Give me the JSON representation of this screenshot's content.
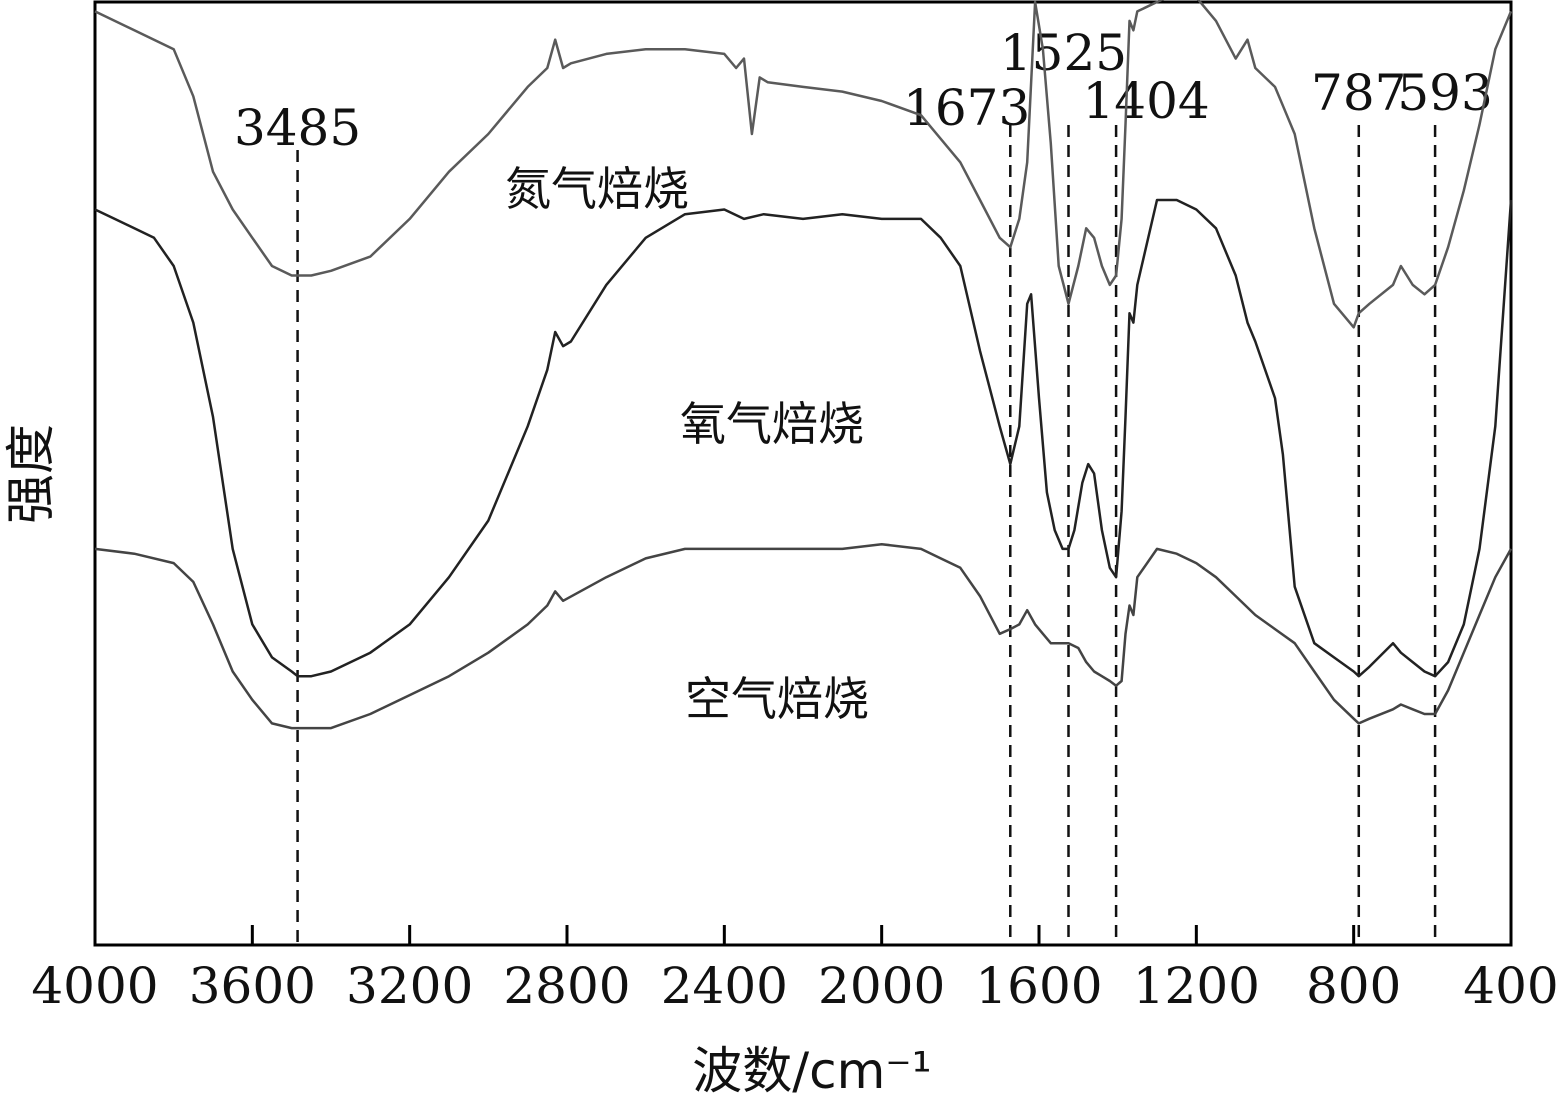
{
  "chart_data": {
    "type": "line",
    "xlabel": "波数/cm⁻¹",
    "ylabel": "强度",
    "xlim": [
      4000,
      400
    ],
    "x_reversed": true,
    "ylim": [
      0,
      100
    ],
    "grid": false,
    "xticks": [
      4000,
      3600,
      3200,
      2800,
      2400,
      2000,
      1600,
      1200,
      800,
      400
    ],
    "y_tick_labels_shown": false,
    "reference_lines": [
      {
        "x": 3485,
        "label": "3485"
      },
      {
        "x": 1673,
        "label": "1673"
      },
      {
        "x": 1525,
        "label": "1525"
      },
      {
        "x": 1404,
        "label": "1404"
      },
      {
        "x": 787,
        "label": "787"
      },
      {
        "x": 593,
        "label": "593"
      }
    ],
    "series": [
      {
        "name": "氮气焙烧",
        "color": "#5a5a5a",
        "x": [
          4000,
          3900,
          3800,
          3750,
          3700,
          3650,
          3600,
          3550,
          3500,
          3450,
          3400,
          3300,
          3200,
          3100,
          3000,
          2900,
          2850,
          2830,
          2810,
          2790,
          2700,
          2600,
          2500,
          2400,
          2370,
          2350,
          2330,
          2310,
          2290,
          2200,
          2100,
          2000,
          1900,
          1800,
          1750,
          1700,
          1673,
          1650,
          1630,
          1610,
          1590,
          1570,
          1550,
          1525,
          1500,
          1480,
          1460,
          1440,
          1420,
          1404,
          1390,
          1380,
          1370,
          1360,
          1350,
          1300,
          1250,
          1200,
          1150,
          1100,
          1070,
          1050,
          1000,
          980,
          950,
          900,
          850,
          800,
          787,
          760,
          700,
          680,
          650,
          620,
          593,
          560,
          520,
          480,
          440,
          400
        ],
        "y": [
          99,
          97,
          95,
          90,
          82,
          78,
          75,
          72,
          71,
          71,
          71.5,
          73,
          77,
          82,
          86,
          91,
          93,
          96,
          93,
          93.5,
          94.5,
          95,
          95,
          94.5,
          93,
          94,
          86,
          92,
          91.5,
          91,
          90.5,
          89.5,
          88,
          83,
          79,
          75,
          74,
          77,
          83,
          100,
          95,
          85,
          72,
          68,
          72,
          76,
          75,
          72,
          70,
          71,
          77,
          87,
          98,
          97,
          99,
          100,
          101,
          100.5,
          98,
          94,
          96,
          93,
          91,
          89,
          86,
          76,
          68,
          65.5,
          67,
          68,
          70,
          72,
          70,
          69,
          70,
          74,
          80,
          87,
          95,
          99
        ]
      },
      {
        "name": "氧气焙烧",
        "color": "#222222",
        "x": [
          4000,
          3950,
          3900,
          3850,
          3800,
          3750,
          3700,
          3650,
          3600,
          3550,
          3500,
          3485,
          3450,
          3400,
          3300,
          3200,
          3100,
          3000,
          2900,
          2850,
          2830,
          2810,
          2790,
          2700,
          2600,
          2500,
          2400,
          2350,
          2300,
          2200,
          2100,
          2000,
          1900,
          1850,
          1800,
          1750,
          1700,
          1673,
          1650,
          1630,
          1620,
          1600,
          1580,
          1560,
          1540,
          1525,
          1510,
          1490,
          1475,
          1460,
          1440,
          1420,
          1404,
          1390,
          1380,
          1370,
          1360,
          1350,
          1300,
          1250,
          1200,
          1150,
          1100,
          1070,
          1050,
          1000,
          980,
          950,
          900,
          850,
          800,
          787,
          760,
          700,
          680,
          650,
          620,
          593,
          560,
          520,
          480,
          440,
          400
        ],
        "y": [
          78,
          77,
          76,
          75,
          72,
          66,
          56,
          42,
          34,
          30.5,
          29,
          28.5,
          28.5,
          29,
          31,
          34,
          39,
          45,
          55,
          61,
          65,
          63.5,
          64,
          70,
          75,
          77.5,
          78,
          77,
          77.5,
          77,
          77.5,
          77,
          77,
          75,
          72,
          63,
          55,
          51,
          55,
          68,
          69,
          58,
          48,
          44,
          42,
          42,
          44,
          49,
          51,
          50,
          44,
          40,
          39,
          46,
          56,
          67,
          66,
          70,
          79,
          79,
          78,
          76,
          71,
          66,
          64,
          58,
          52,
          38,
          32,
          30.5,
          29,
          28.5,
          29.5,
          32,
          31,
          30,
          29,
          28.5,
          30,
          34,
          42,
          55,
          79
        ]
      },
      {
        "name": "空气焙烧",
        "color": "#444444",
        "x": [
          4000,
          3900,
          3800,
          3750,
          3700,
          3650,
          3600,
          3550,
          3500,
          3485,
          3450,
          3400,
          3300,
          3200,
          3100,
          3000,
          2900,
          2850,
          2830,
          2810,
          2700,
          2600,
          2500,
          2400,
          2300,
          2200,
          2100,
          2000,
          1900,
          1850,
          1800,
          1750,
          1700,
          1673,
          1650,
          1630,
          1610,
          1590,
          1570,
          1550,
          1525,
          1500,
          1480,
          1460,
          1440,
          1420,
          1404,
          1390,
          1380,
          1370,
          1360,
          1350,
          1300,
          1250,
          1200,
          1150,
          1100,
          1050,
          1000,
          950,
          900,
          850,
          800,
          787,
          760,
          700,
          680,
          650,
          620,
          593,
          560,
          520,
          480,
          440,
          400
        ],
        "y": [
          42,
          41.5,
          40.5,
          38.5,
          34,
          29,
          26,
          23.5,
          23,
          23,
          23,
          23,
          24.5,
          26.5,
          28.5,
          31,
          34,
          36,
          37.5,
          36.5,
          39,
          41,
          42,
          42,
          42,
          42,
          42,
          42.5,
          42,
          41,
          40,
          37,
          33,
          33.5,
          34,
          35.5,
          34,
          33,
          32,
          32,
          32,
          31.5,
          30,
          29,
          28.5,
          28,
          27.5,
          28,
          33,
          36,
          35,
          39,
          42,
          41.5,
          40.5,
          39,
          37,
          35,
          33.5,
          32,
          29,
          26,
          24,
          23.5,
          24,
          25,
          25.5,
          25,
          24.5,
          24.5,
          27,
          31,
          35,
          39,
          42
        ]
      }
    ]
  }
}
